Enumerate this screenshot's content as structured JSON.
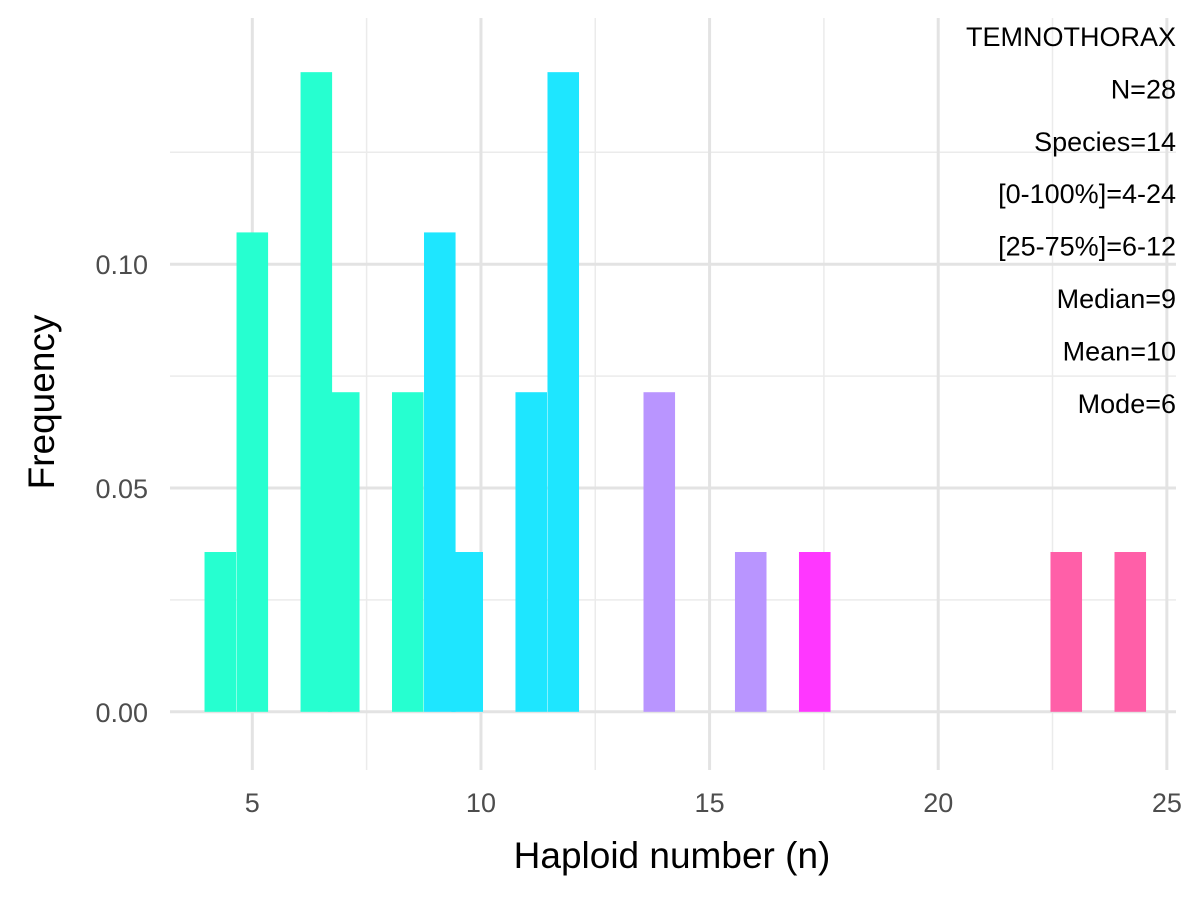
{
  "chart_data": {
    "type": "bar",
    "xlabel": "Haploid number (n)",
    "ylabel": "Frequency",
    "xlim": [
      3.2,
      25.2
    ],
    "ylim": [
      -0.013,
      0.155
    ],
    "x_ticks": [
      5,
      10,
      15,
      20,
      25
    ],
    "x_tick_labels": [
      "5",
      "10",
      "15",
      "20",
      "25"
    ],
    "y_ticks": [
      0.0,
      0.05,
      0.1
    ],
    "y_tick_labels": [
      "0.00",
      "0.05",
      "0.10"
    ],
    "bin_width": 0.69,
    "grid": true,
    "series": [
      {
        "color": "#26ffd0",
        "bars": [
          {
            "x": 4.3,
            "value": 0.0357
          },
          {
            "x": 5.0,
            "value": 0.1071
          },
          {
            "x": 6.4,
            "value": 0.1429
          },
          {
            "x": 7.0,
            "value": 0.0714
          },
          {
            "x": 8.4,
            "value": 0.0714
          }
        ]
      },
      {
        "color": "#1ee6ff",
        "bars": [
          {
            "x": 9.1,
            "value": 0.1071
          },
          {
            "x": 9.7,
            "value": 0.0357
          },
          {
            "x": 11.1,
            "value": 0.0714
          },
          {
            "x": 11.8,
            "value": 0.1429
          }
        ]
      },
      {
        "color": "#b995ff",
        "bars": [
          {
            "x": 13.9,
            "value": 0.0714
          },
          {
            "x": 15.9,
            "value": 0.0357
          }
        ]
      },
      {
        "color": "#ff37ff",
        "bars": [
          {
            "x": 17.3,
            "value": 0.0357
          }
        ]
      },
      {
        "color": "#ff5fa8",
        "bars": [
          {
            "x": 22.8,
            "value": 0.0357
          },
          {
            "x": 24.2,
            "value": 0.0357
          }
        ]
      }
    ],
    "annotations": [
      "TEMNOTHORAX",
      "N=28",
      "Species=14",
      "[0-100%]=4-24",
      "[25-75%]=6-12",
      "Median=9",
      "Mean=10",
      "Mode=6"
    ]
  }
}
